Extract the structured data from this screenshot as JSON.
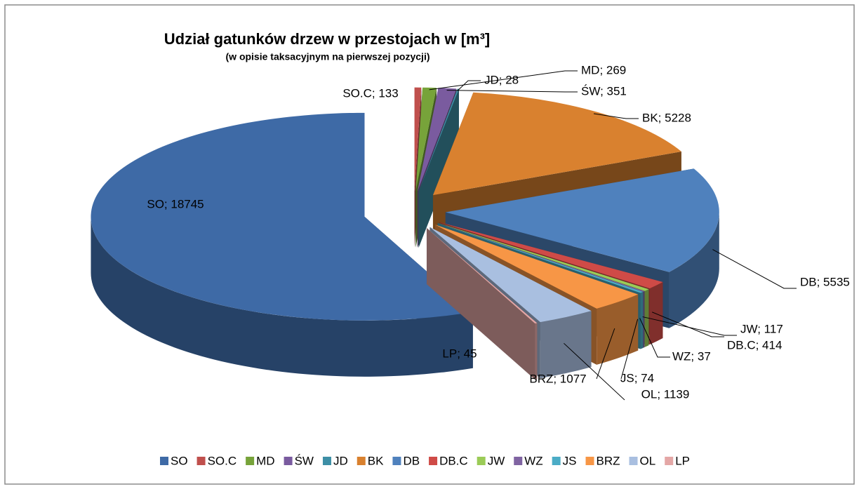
{
  "chart_data": {
    "type": "pie3d",
    "title": "Udział gatunków drzew w przestojach w [m³]",
    "subtitle": "(w opisie taksacyjnym na pierwszej pozycji)",
    "categories": [
      "SO",
      "SO.C",
      "MD",
      "ŚW",
      "JD",
      "BK",
      "DB",
      "DB.C",
      "JW",
      "WZ",
      "JS",
      "BRZ",
      "OL",
      "LP"
    ],
    "values": [
      18745,
      133,
      269,
      351,
      28,
      5228,
      5535,
      414,
      117,
      37,
      74,
      1077,
      1139,
      45
    ],
    "value_labels": [
      "SO; 18745",
      "SO.C; 133",
      "MD; 269",
      "ŚW; 351",
      "JD; 28",
      "BK; 5228",
      "DB; 5535",
      "DB.C; 414",
      "JW; 117",
      "WZ; 37",
      "JS; 74",
      "BRZ; 1077",
      "OL; 1139",
      "LP; 45"
    ],
    "colors": [
      "#3e6aa6",
      "#c0504d",
      "#77a33a",
      "#7a5b9f",
      "#3d8fa6",
      "#d9812f",
      "#4f81bd",
      "#cf4b47",
      "#9bcb57",
      "#8064a2",
      "#4bacc6",
      "#f79646",
      "#a9bfe0",
      "#e4a7a6"
    ],
    "legend": "bottom"
  }
}
